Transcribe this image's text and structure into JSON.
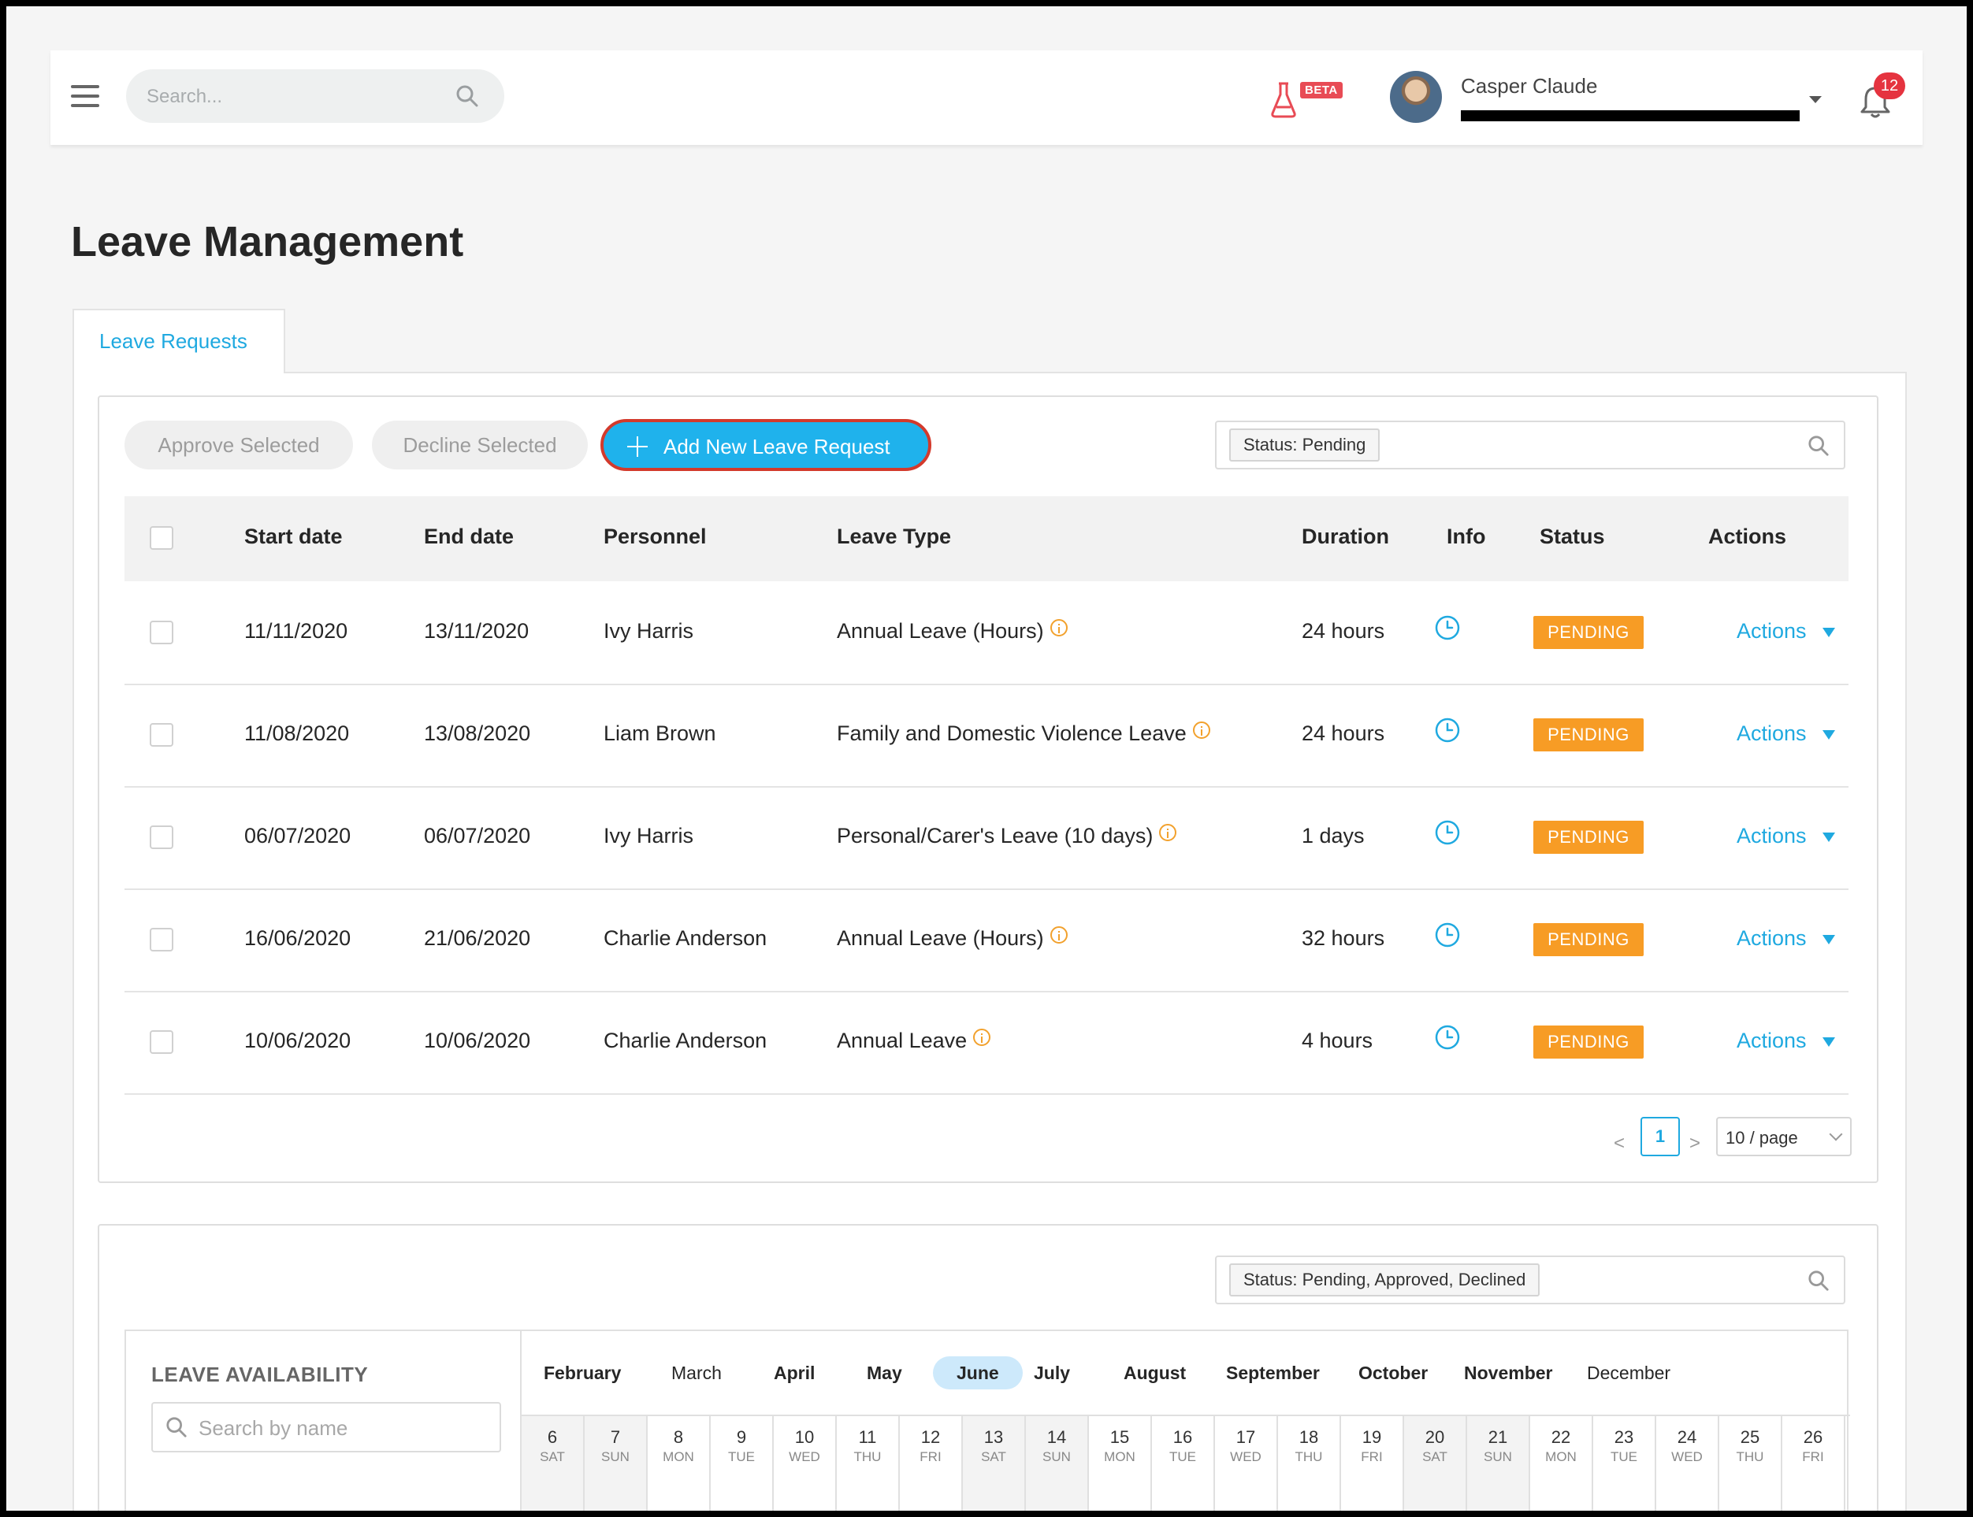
{
  "header": {
    "search_placeholder": "Search...",
    "beta_label": "BETA",
    "user_name": "Casper Claude",
    "notification_count": "12"
  },
  "page": {
    "title": "Leave Management",
    "tab_label": "Leave Requests"
  },
  "toolbar": {
    "approve_label": "Approve Selected",
    "decline_label": "Decline Selected",
    "add_label": "Add New Leave Request",
    "filter_tag": "Status: Pending"
  },
  "table": {
    "columns": [
      "Start date",
      "End date",
      "Personnel",
      "Leave Type",
      "Duration",
      "Info",
      "Status",
      "Actions"
    ],
    "rows": [
      {
        "start": "11/11/2020",
        "end": "13/11/2020",
        "personnel": "Ivy Harris",
        "type": "Annual Leave (Hours)",
        "duration": "24 hours",
        "status": "PENDING",
        "action": "Actions"
      },
      {
        "start": "11/08/2020",
        "end": "13/08/2020",
        "personnel": "Liam Brown",
        "type": "Family and Domestic Violence Leave",
        "duration": "24 hours",
        "status": "PENDING",
        "action": "Actions"
      },
      {
        "start": "06/07/2020",
        "end": "06/07/2020",
        "personnel": "Ivy Harris",
        "type": "Personal/Carer's Leave (10 days)",
        "duration": "1 days",
        "status": "PENDING",
        "action": "Actions"
      },
      {
        "start": "16/06/2020",
        "end": "21/06/2020",
        "personnel": "Charlie Anderson",
        "type": "Annual Leave (Hours)",
        "duration": "32 hours",
        "status": "PENDING",
        "action": "Actions"
      },
      {
        "start": "10/06/2020",
        "end": "10/06/2020",
        "personnel": "Charlie Anderson",
        "type": "Annual Leave",
        "duration": "4 hours",
        "status": "PENDING",
        "action": "Actions"
      }
    ]
  },
  "pagination": {
    "prev": "<",
    "current": "1",
    "next": ">",
    "page_size": "10 / page"
  },
  "availability": {
    "filter_tag": "Status: Pending, Approved, Declined",
    "title": "LEAVE AVAILABILITY",
    "search_placeholder": "Search by name",
    "months": [
      "February",
      "March",
      "April",
      "May",
      "June",
      "July",
      "August",
      "September",
      "October",
      "November",
      "December"
    ],
    "bold_months": [
      "February",
      "April",
      "May",
      "June",
      "July",
      "August",
      "September",
      "October",
      "November"
    ],
    "selected_month": "June",
    "days": [
      {
        "num": "6",
        "name": "SAT"
      },
      {
        "num": "7",
        "name": "SUN"
      },
      {
        "num": "8",
        "name": "MON"
      },
      {
        "num": "9",
        "name": "TUE"
      },
      {
        "num": "10",
        "name": "WED"
      },
      {
        "num": "11",
        "name": "THU"
      },
      {
        "num": "12",
        "name": "FRI"
      },
      {
        "num": "13",
        "name": "SAT"
      },
      {
        "num": "14",
        "name": "SUN"
      },
      {
        "num": "15",
        "name": "MON"
      },
      {
        "num": "16",
        "name": "TUE"
      },
      {
        "num": "17",
        "name": "WED"
      },
      {
        "num": "18",
        "name": "THU"
      },
      {
        "num": "19",
        "name": "FRI"
      },
      {
        "num": "20",
        "name": "SAT"
      },
      {
        "num": "21",
        "name": "SUN"
      },
      {
        "num": "22",
        "name": "MON"
      },
      {
        "num": "23",
        "name": "TUE"
      },
      {
        "num": "24",
        "name": "WED"
      },
      {
        "num": "25",
        "name": "THU"
      },
      {
        "num": "26",
        "name": "FRI"
      }
    ]
  },
  "colors": {
    "accent": "#1fa9e0",
    "pending": "#f79c25",
    "notification": "#e5333f",
    "beta": "#e84b55"
  },
  "icons": [
    "menu-icon",
    "search-icon",
    "flask-icon",
    "chevron-down-icon",
    "bell-icon",
    "plus-icon",
    "info-icon",
    "clock-icon",
    "caret-down-icon"
  ]
}
